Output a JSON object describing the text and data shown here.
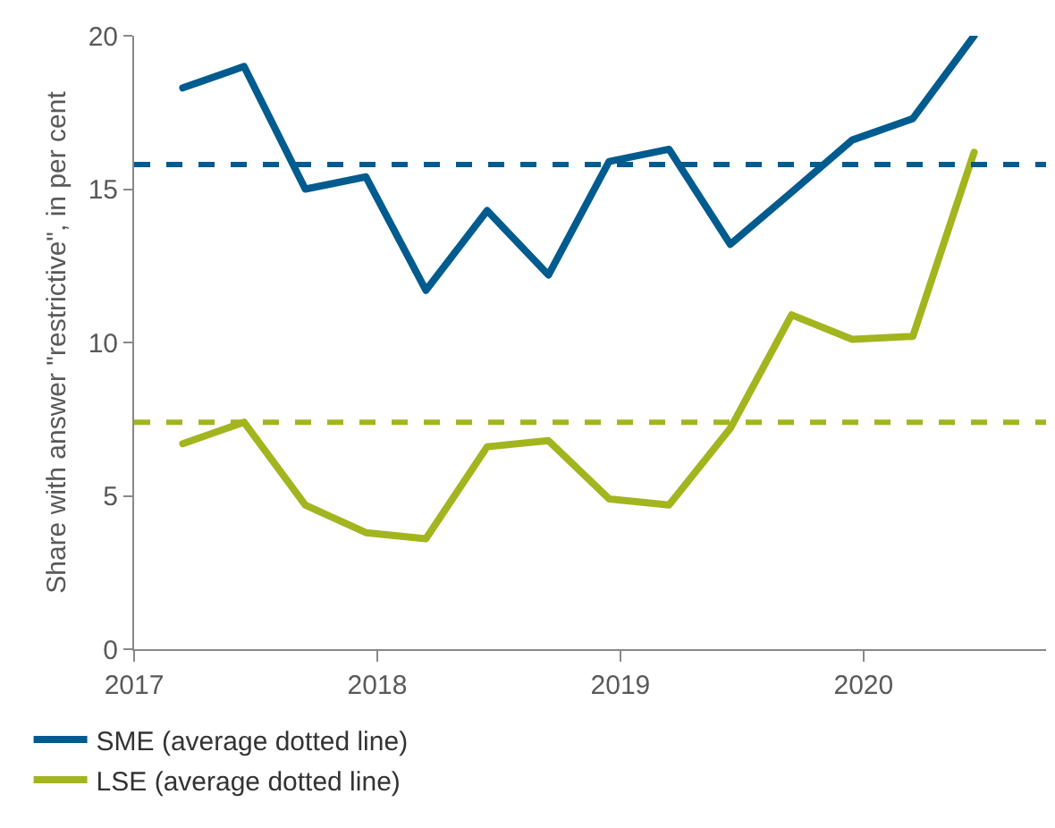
{
  "chart_data": {
    "type": "line",
    "ylabel": "Share with answer \"restrictive\", in per cent",
    "x": [
      "2017-03-15",
      "2017-06-15",
      "2017-09-15",
      "2017-12-15",
      "2018-03-15",
      "2018-06-15",
      "2018-09-15",
      "2018-12-15",
      "2019-03-15",
      "2019-06-15",
      "2019-09-15",
      "2019-12-15",
      "2020-03-15",
      "2020-06-15"
    ],
    "series": [
      {
        "name": "SME (average dotted line)",
        "color": "#005b8e",
        "values": [
          18.3,
          19.0,
          15.0,
          15.4,
          11.7,
          14.3,
          12.2,
          15.9,
          16.3,
          13.2,
          14.9,
          16.6,
          17.3,
          20.0
        ]
      },
      {
        "name": "LSE (average dotted line)",
        "color": "#a3b51e",
        "values": [
          6.7,
          7.4,
          4.7,
          3.8,
          3.6,
          6.6,
          6.8,
          4.9,
          4.7,
          7.2,
          10.9,
          10.1,
          10.2,
          16.2
        ]
      }
    ],
    "ref_lines": [
      {
        "axis": "y",
        "value": 15.8,
        "color": "#005b8e",
        "line_style": "dashed"
      },
      {
        "axis": "y",
        "value": 7.4,
        "color": "#a3b51e",
        "line_style": "dashed"
      }
    ],
    "xlim": [
      "2017-01-01",
      "2020-10-01"
    ],
    "xticks": [
      "2017",
      "2018",
      "2019",
      "2020"
    ],
    "ylim": [
      0,
      20
    ],
    "yticks": [
      0,
      5,
      10,
      15,
      20
    ],
    "grid": false,
    "legend": "bottom",
    "marker": "none",
    "line_style": "solid"
  }
}
